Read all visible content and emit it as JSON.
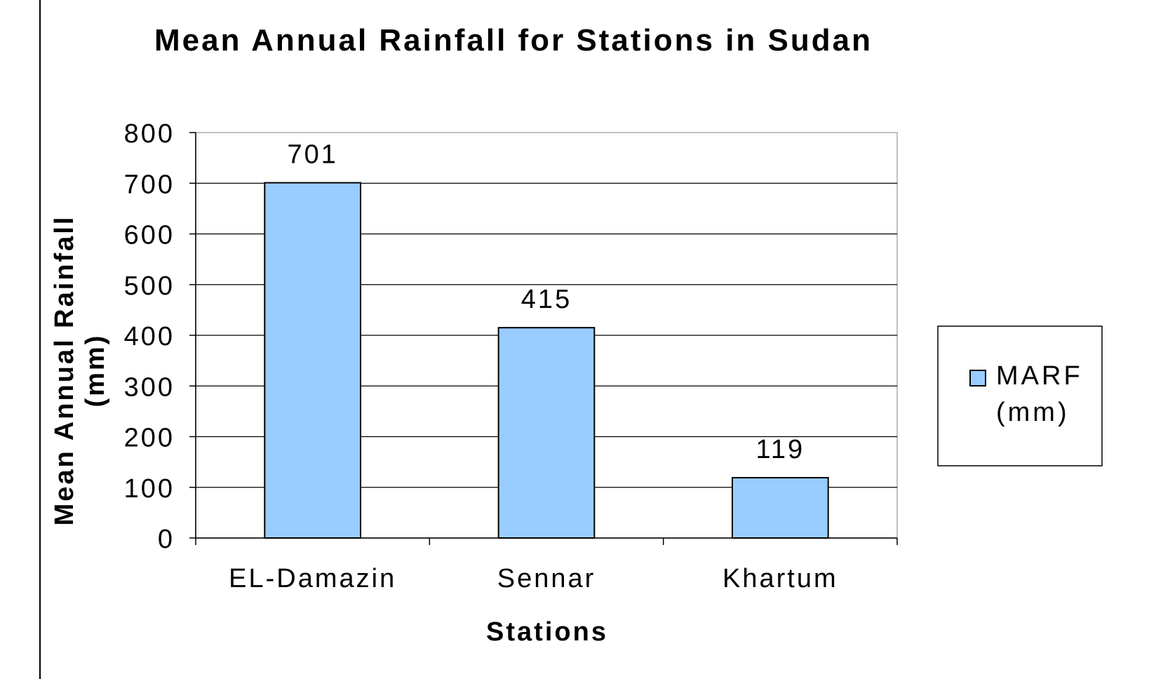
{
  "chart_data": {
    "type": "bar",
    "title": "Mean Annual Rainfall for Stations in Sudan",
    "xlabel": "Stations",
    "ylabel_line1": "Mean Annual Rainfall",
    "ylabel_line2": "(mm)",
    "categories": [
      "EL-Damazin",
      "Sennar",
      "Khartum"
    ],
    "series": [
      {
        "name_line1": "MARF",
        "name_line2": "(mm)",
        "values": [
          701,
          415,
          119
        ],
        "color": "#99ccff"
      }
    ],
    "data_labels": [
      "701",
      "415",
      "119"
    ],
    "ylim": [
      0,
      800
    ],
    "yticks": [
      0,
      100,
      200,
      300,
      400,
      500,
      600,
      700,
      800
    ],
    "grid": true,
    "legend_position": "right"
  }
}
